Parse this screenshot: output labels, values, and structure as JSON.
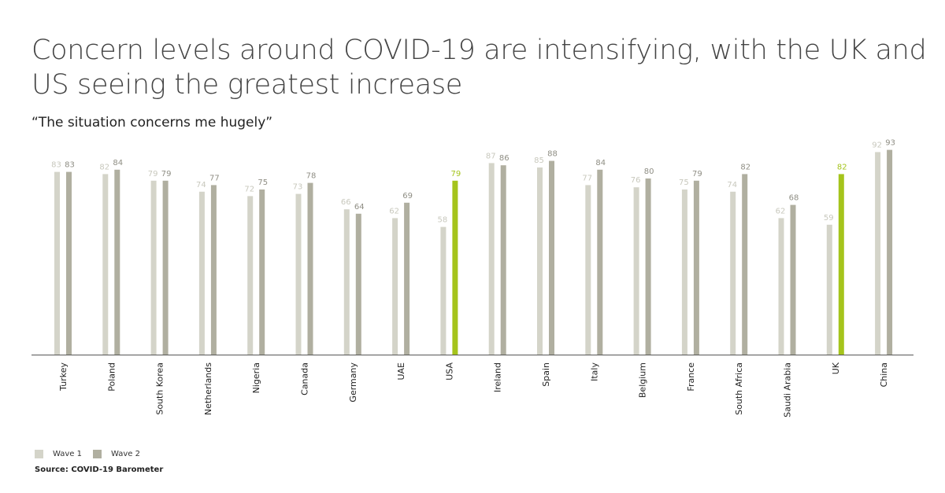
{
  "title": "Concern levels around COVID-19 are intensifying, with the UK and US seeing the greatest increase",
  "subtitle": "“The situation concerns me hugely”",
  "source": "Source: COVID-19 Barometer",
  "colors": {
    "wave1": "#d4d4c9",
    "wave2": "#b0afa0",
    "highlight": "#a5c41c",
    "wave1_label": "#c8c8bd",
    "wave2_label": "#8f8e84"
  },
  "chart_data": {
    "type": "bar",
    "title": "“The situation concerns me hugely”",
    "categories": [
      "Turkey",
      "Poland",
      "South Korea",
      "Netherlands",
      "Nigeria",
      "Canada",
      "Germany",
      "UAE",
      "USA",
      "Ireland",
      "Spain",
      "Italy",
      "Belgium",
      "France",
      "South Africa",
      "Saudi Arabia",
      "UK",
      "China"
    ],
    "series": [
      {
        "name": "Wave 1",
        "values": [
          83,
          82,
          79,
          74,
          72,
          73,
          66,
          62,
          58,
          87,
          85,
          77,
          76,
          75,
          74,
          62,
          59,
          92
        ]
      },
      {
        "name": "Wave 2",
        "values": [
          83,
          84,
          79,
          77,
          75,
          78,
          64,
          69,
          79,
          86,
          88,
          84,
          80,
          79,
          82,
          68,
          82,
          93
        ]
      }
    ],
    "highlighted_wave2": [
      "USA",
      "UK"
    ],
    "ylim": [
      0,
      100
    ],
    "grid": false,
    "legend": "bottom-left",
    "data_labels": true
  }
}
